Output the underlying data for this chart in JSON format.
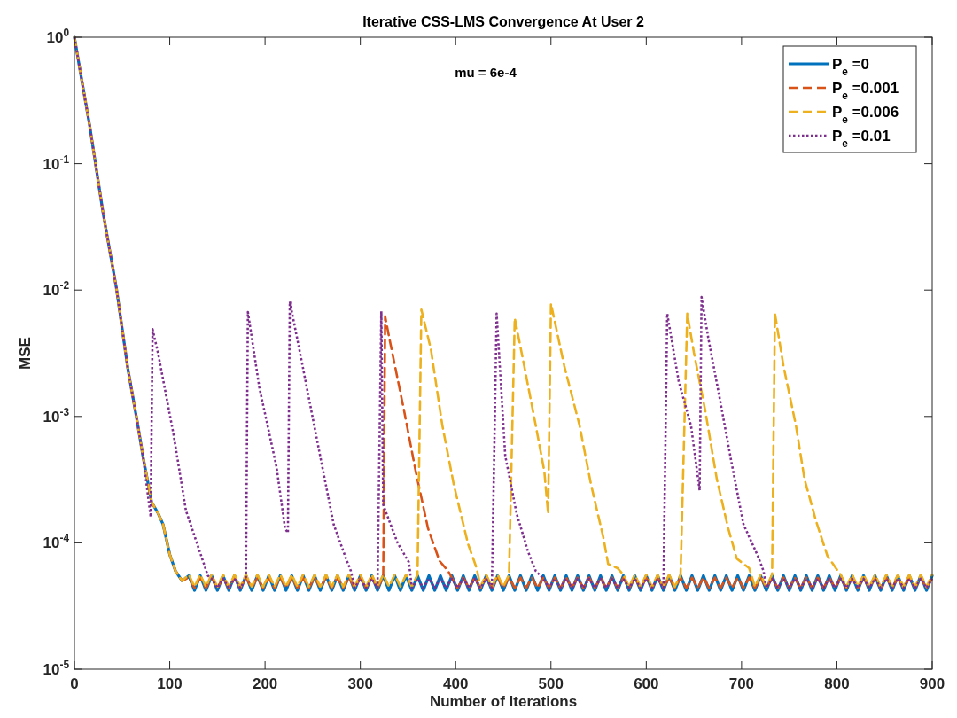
{
  "chart_data": {
    "type": "line",
    "title": "Iterative CSS-LMS Convergence At User 2",
    "xlabel": "Number of Iterations",
    "ylabel": "MSE",
    "annotations": [
      "mu = 6e-4"
    ],
    "log": "y",
    "grid": false,
    "legend": "top right",
    "marker": "none",
    "xlim": [
      0,
      900
    ],
    "xticks": [
      0,
      100,
      200,
      300,
      400,
      500,
      600,
      700,
      800,
      900
    ],
    "ylim": [
      1e-05,
      1
    ],
    "yticks": [
      {
        "value": 1e-05,
        "label": "10$^{-5}$"
      },
      {
        "value": 0.0001,
        "label": "10$^{-4}$"
      },
      {
        "value": 0.001,
        "label": "10$^{-3}$"
      },
      {
        "value": 0.01,
        "label": "10$^{-2}$"
      },
      {
        "value": 0.1,
        "label": "10$^{-1}$"
      },
      {
        "value": 1,
        "label": "10$^{0}$"
      }
    ],
    "series": [
      {
        "name": "P$_{e}$ =0",
        "color": "#0072bd",
        "line_style": "solid",
        "x": [
          0,
          5,
          16,
          30,
          44,
          56,
          66,
          72,
          81,
          88,
          93,
          100,
          106,
          113,
          120,
          126,
          132,
          138,
          144,
          150,
          156,
          162,
          168,
          174,
          180,
          186,
          192,
          198,
          204,
          210,
          216,
          222,
          228,
          234,
          240,
          246,
          252,
          258,
          264,
          270,
          276,
          282,
          288,
          294,
          300,
          306,
          312,
          318,
          324,
          330,
          336,
          342,
          348,
          354,
          360,
          366,
          372,
          378,
          384,
          390,
          396,
          402,
          408,
          414,
          420,
          426,
          432,
          438,
          444,
          450,
          456,
          462,
          468,
          474,
          480,
          486,
          492,
          498,
          504,
          510,
          516,
          522,
          528,
          534,
          540,
          546,
          552,
          558,
          564,
          570,
          576,
          582,
          588,
          594,
          600,
          606,
          612,
          618,
          624,
          630,
          636,
          642,
          648,
          654,
          660,
          666,
          672,
          678,
          684,
          690,
          696,
          702,
          708,
          714,
          720,
          726,
          732,
          738,
          744,
          750,
          756,
          762,
          768,
          774,
          780,
          786,
          792,
          798,
          804,
          810,
          816,
          822,
          828,
          834,
          840,
          846,
          852,
          858,
          864,
          870,
          876,
          882,
          888,
          894,
          900
        ],
        "values": [
          1,
          0.6,
          0.2,
          0.041,
          0.0104,
          0.0024,
          0.0009,
          0.00048,
          0.00021,
          0.00017,
          0.00014,
          8.1e-05,
          6e-05,
          5e-05,
          5.5e-05,
          4.2e-05,
          5.5e-05,
          4.2e-05,
          5.5e-05,
          4.2e-05,
          5.5e-05,
          4.2e-05,
          5.5e-05,
          4.2e-05,
          5.5e-05,
          4.2e-05,
          5.5e-05,
          4.2e-05,
          5.5e-05,
          4.2e-05,
          5.5e-05,
          4.2e-05,
          5.5e-05,
          4.2e-05,
          5.5e-05,
          4.2e-05,
          5.5e-05,
          4.2e-05,
          5.5e-05,
          4.2e-05,
          5.5e-05,
          4.2e-05,
          5.5e-05,
          4.2e-05,
          5.5e-05,
          4.2e-05,
          5.5e-05,
          4.2e-05,
          5.5e-05,
          4.2e-05,
          5.5e-05,
          4.2e-05,
          5.5e-05,
          4.2e-05,
          5.5e-05,
          4.2e-05,
          5.5e-05,
          4.2e-05,
          5.5e-05,
          4.2e-05,
          5.5e-05,
          4.2e-05,
          5.5e-05,
          4.2e-05,
          5.5e-05,
          4.2e-05,
          5.5e-05,
          4.2e-05,
          5.5e-05,
          4.2e-05,
          5.5e-05,
          4.2e-05,
          5.5e-05,
          4.2e-05,
          5.5e-05,
          4.2e-05,
          5.5e-05,
          4.2e-05,
          5.5e-05,
          4.2e-05,
          5.5e-05,
          4.2e-05,
          5.5e-05,
          4.2e-05,
          5.5e-05,
          4.2e-05,
          5.5e-05,
          4.2e-05,
          5.5e-05,
          4.2e-05,
          5.5e-05,
          4.2e-05,
          5.5e-05,
          4.2e-05,
          5.5e-05,
          4.2e-05,
          5.5e-05,
          4.2e-05,
          5.5e-05,
          4.2e-05,
          5.5e-05,
          4.2e-05,
          5.5e-05,
          4.2e-05,
          5.5e-05,
          4.2e-05,
          5.5e-05,
          4.2e-05,
          5.5e-05,
          4.2e-05,
          5.5e-05,
          4.2e-05,
          5.5e-05,
          4.2e-05,
          5.5e-05,
          4.2e-05,
          5.5e-05,
          4.2e-05,
          5.5e-05,
          4.2e-05,
          5.5e-05,
          4.2e-05,
          5.5e-05,
          4.2e-05,
          5.5e-05,
          4.2e-05,
          5.5e-05,
          4.2e-05,
          5.5e-05,
          4.2e-05,
          5.5e-05,
          4.2e-05,
          5.5e-05,
          4.2e-05,
          5.5e-05,
          4.2e-05,
          5.5e-05,
          4.2e-05,
          5.5e-05,
          4.2e-05,
          5.5e-05,
          4.2e-05,
          5.5e-05,
          4.2e-05,
          5.5e-05
        ]
      },
      {
        "name": "P$_{e}$ =0.001",
        "color": "#d95319",
        "line_style": "dashed",
        "x": [
          0,
          5,
          16,
          30,
          44,
          56,
          66,
          72,
          81,
          88,
          93,
          100,
          106,
          113,
          120,
          126,
          132,
          138,
          144,
          150,
          156,
          162,
          168,
          174,
          180,
          186,
          192,
          198,
          204,
          210,
          216,
          222,
          228,
          234,
          240,
          246,
          252,
          258,
          264,
          270,
          276,
          282,
          288,
          294,
          300,
          306,
          312,
          318,
          324,
          326,
          330,
          346,
          358,
          371,
          383,
          392,
          396,
          402,
          408,
          414,
          420,
          426,
          432,
          438,
          444,
          450,
          456,
          462,
          468,
          474,
          480,
          486,
          492,
          498,
          504,
          510,
          516,
          522,
          528,
          534,
          540,
          546,
          552,
          558,
          564,
          570,
          576,
          582,
          588,
          594,
          600,
          606,
          612,
          618,
          624,
          630,
          636,
          642,
          648,
          654,
          660,
          666,
          672,
          678,
          684,
          690,
          696,
          702,
          708,
          714,
          720,
          726,
          732,
          738,
          744,
          750,
          756,
          762,
          768,
          774,
          780,
          786,
          792,
          798,
          804,
          810,
          816,
          822,
          828,
          834,
          840,
          846,
          852,
          858,
          864,
          870,
          876,
          882,
          888,
          894,
          900
        ],
        "values": [
          1,
          0.6,
          0.2,
          0.041,
          0.0104,
          0.0024,
          0.0009,
          0.00048,
          0.00021,
          0.00017,
          0.00014,
          8.1e-05,
          6e-05,
          5e-05,
          5.3e-05,
          4.4e-05,
          5.3e-05,
          4.4e-05,
          5.3e-05,
          4.4e-05,
          5.3e-05,
          4.4e-05,
          5.3e-05,
          4.4e-05,
          5.3e-05,
          4.4e-05,
          5.3e-05,
          4.4e-05,
          5.3e-05,
          4.4e-05,
          5.3e-05,
          4.4e-05,
          5.3e-05,
          4.4e-05,
          5.3e-05,
          4.4e-05,
          5.3e-05,
          4.4e-05,
          5.3e-05,
          4.4e-05,
          5.3e-05,
          4.4e-05,
          5.3e-05,
          4.4e-05,
          5.3e-05,
          4.4e-05,
          5.3e-05,
          4.4e-05,
          5.3e-05,
          0.0062,
          0.0043,
          0.0011,
          0.00037,
          0.00013,
          7.2e-05,
          6e-05,
          5.3e-05,
          4.4e-05,
          5.3e-05,
          4.4e-05,
          5.3e-05,
          4.4e-05,
          5.3e-05,
          4.4e-05,
          5.3e-05,
          4.4e-05,
          5.3e-05,
          4.4e-05,
          5.3e-05,
          4.4e-05,
          5.3e-05,
          4.4e-05,
          5.3e-05,
          4.4e-05,
          5.3e-05,
          4.4e-05,
          5.3e-05,
          4.4e-05,
          5.3e-05,
          4.4e-05,
          5.3e-05,
          4.4e-05,
          5.3e-05,
          4.4e-05,
          5.3e-05,
          4.4e-05,
          5.3e-05,
          4.4e-05,
          5.3e-05,
          4.4e-05,
          5.3e-05,
          4.4e-05,
          5.3e-05,
          4.4e-05,
          5.3e-05,
          4.4e-05,
          5.3e-05,
          4.4e-05,
          5.3e-05,
          4.4e-05,
          5.3e-05,
          4.4e-05,
          5.3e-05,
          4.4e-05,
          5.3e-05,
          4.4e-05,
          5.3e-05,
          4.4e-05,
          5.3e-05,
          4.4e-05,
          5.3e-05,
          4.4e-05,
          5.3e-05,
          4.4e-05,
          5.3e-05,
          4.4e-05,
          5.3e-05,
          4.4e-05,
          5.3e-05,
          4.4e-05,
          5.3e-05,
          4.4e-05,
          5.3e-05,
          4.4e-05,
          5.3e-05,
          4.4e-05,
          5.3e-05,
          4.4e-05,
          5.3e-05,
          4.4e-05,
          5.3e-05,
          4.4e-05,
          5.3e-05,
          4.4e-05,
          5.3e-05,
          4.4e-05,
          5.3e-05,
          4.4e-05,
          5.3e-05,
          4.4e-05,
          5.3e-05
        ]
      },
      {
        "name": "P$_{e}$ =0.006",
        "color": "#edb120",
        "line_style": "dashed",
        "x": [
          0,
          5,
          16,
          30,
          44,
          56,
          66,
          72,
          81,
          88,
          93,
          100,
          106,
          113,
          120,
          126,
          132,
          138,
          144,
          150,
          156,
          162,
          168,
          174,
          180,
          186,
          192,
          198,
          204,
          210,
          216,
          222,
          228,
          234,
          240,
          246,
          252,
          258,
          264,
          270,
          276,
          282,
          288,
          294,
          300,
          306,
          312,
          318,
          324,
          330,
          336,
          342,
          348,
          354,
          360,
          364,
          374,
          386,
          398,
          413,
          422,
          426,
          432,
          438,
          444,
          450,
          456,
          462,
          472,
          484,
          493,
          497,
          500,
          514,
          530,
          542,
          555,
          560,
          570,
          576,
          582,
          588,
          594,
          600,
          606,
          612,
          618,
          624,
          630,
          636,
          643,
          650,
          662,
          674,
          686,
          695,
          708,
          714,
          720,
          726,
          732,
          735,
          744,
          757,
          766,
          778,
          790,
          799,
          804,
          810,
          816,
          822,
          828,
          834,
          840,
          846,
          852,
          858,
          864,
          870,
          876,
          882,
          888,
          894,
          900
        ],
        "values": [
          1,
          0.6,
          0.2,
          0.041,
          0.0104,
          0.0024,
          0.0009,
          0.00048,
          0.00021,
          0.00017,
          0.00014,
          8.1e-05,
          6e-05,
          5e-05,
          5.6e-05,
          4.5e-05,
          5.6e-05,
          4.5e-05,
          5.6e-05,
          4.5e-05,
          5.6e-05,
          4.5e-05,
          5.6e-05,
          4.5e-05,
          5.6e-05,
          4.5e-05,
          5.6e-05,
          4.5e-05,
          5.6e-05,
          4.5e-05,
          5.6e-05,
          4.5e-05,
          5.6e-05,
          4.5e-05,
          5.6e-05,
          4.5e-05,
          5.6e-05,
          4.5e-05,
          5.6e-05,
          4.5e-05,
          5.6e-05,
          4.5e-05,
          5.6e-05,
          4.5e-05,
          5.6e-05,
          4.5e-05,
          5.6e-05,
          4.5e-05,
          5.6e-05,
          4.5e-05,
          5.6e-05,
          4.5e-05,
          5.6e-05,
          4.5e-05,
          5.6e-05,
          0.007,
          0.0034,
          0.00085,
          0.00029,
          9.8e-05,
          6.3e-05,
          4.5e-05,
          5.6e-05,
          4.5e-05,
          5.6e-05,
          4.5e-05,
          5.6e-05,
          0.006,
          0.0025,
          0.00085,
          0.00037,
          0.00017,
          0.0078,
          0.0025,
          0.00085,
          0.00029,
          0.00011,
          6.8e-05,
          6.3e-05,
          5.6e-05,
          4.5e-05,
          5.6e-05,
          4.5e-05,
          5.6e-05,
          4.5e-05,
          5.6e-05,
          4.5e-05,
          5.6e-05,
          4.5e-05,
          5.6e-05,
          0.0065,
          0.0032,
          0.0011,
          0.00032,
          0.00013,
          7.5e-05,
          6.3e-05,
          4.5e-05,
          5.6e-05,
          4.5e-05,
          5.6e-05,
          0.0065,
          0.0025,
          0.00085,
          0.00032,
          0.00015,
          7.9e-05,
          6.3e-05,
          5.6e-05,
          4.5e-05,
          5.6e-05,
          4.5e-05,
          5.6e-05,
          4.5e-05,
          5.6e-05,
          4.5e-05,
          5.6e-05,
          4.5e-05,
          5.6e-05,
          4.5e-05,
          5.6e-05,
          4.5e-05,
          5.6e-05,
          4.5e-05,
          5.6e-05
        ]
      },
      {
        "name": "P$_{e}$ =0.01",
        "color": "#7e2f8e",
        "line_style": "dotted",
        "x": [
          0,
          5,
          16,
          30,
          44,
          56,
          66,
          72,
          80,
          82,
          88,
          104,
          117,
          134,
          140,
          144,
          150,
          156,
          162,
          168,
          174,
          180,
          182,
          194,
          212,
          221,
          224,
          226,
          239,
          258,
          272,
          285,
          290,
          294,
          300,
          306,
          312,
          318,
          322,
          324,
          339,
          351,
          354,
          360,
          366,
          372,
          378,
          384,
          390,
          396,
          402,
          408,
          414,
          420,
          426,
          432,
          438,
          443,
          452,
          464,
          476,
          484,
          492,
          498,
          504,
          510,
          516,
          522,
          528,
          534,
          540,
          546,
          552,
          558,
          564,
          570,
          576,
          582,
          588,
          594,
          600,
          606,
          612,
          618,
          622,
          634,
          647,
          656,
          658,
          665,
          677,
          689,
          702,
          717,
          723,
          726,
          732,
          738,
          744,
          750,
          756,
          762,
          768,
          774,
          780,
          786,
          792,
          798,
          804,
          810,
          816,
          822,
          828,
          834,
          840,
          846,
          852,
          858,
          864,
          870,
          876,
          882,
          888,
          894,
          900
        ],
        "values": [
          1,
          0.6,
          0.2,
          0.041,
          0.0104,
          0.0024,
          0.0009,
          0.00048,
          0.00016,
          0.0049,
          0.0031,
          0.00072,
          0.00018,
          7.5e-05,
          5.5e-05,
          5.2e-05,
          4.4e-05,
          5.2e-05,
          4.4e-05,
          5.2e-05,
          4.4e-05,
          5.2e-05,
          0.0067,
          0.0017,
          0.0004,
          0.00013,
          0.00012,
          0.0081,
          0.0026,
          0.00048,
          0.00014,
          7.5e-05,
          6e-05,
          4.4e-05,
          5.2e-05,
          4.4e-05,
          5.2e-05,
          4.4e-05,
          0.0068,
          0.0002,
          0.0001,
          7e-05,
          4.4e-05,
          5.2e-05,
          4.4e-05,
          5.2e-05,
          4.4e-05,
          5.2e-05,
          4.4e-05,
          5.2e-05,
          4.4e-05,
          5.2e-05,
          4.4e-05,
          5.2e-05,
          4.4e-05,
          5.2e-05,
          4.4e-05,
          0.0065,
          0.00049,
          0.00017,
          8.5e-05,
          6e-05,
          5.2e-05,
          4.4e-05,
          5.2e-05,
          4.4e-05,
          5.2e-05,
          4.4e-05,
          5.2e-05,
          4.4e-05,
          5.2e-05,
          4.4e-05,
          5.2e-05,
          4.4e-05,
          5.2e-05,
          4.4e-05,
          5.2e-05,
          4.4e-05,
          5.2e-05,
          4.4e-05,
          5.2e-05,
          4.4e-05,
          5.2e-05,
          4.4e-05,
          0.0065,
          0.0019,
          0.00084,
          0.00026,
          0.0088,
          0.0042,
          0.0014,
          0.00045,
          0.00014,
          7.9e-05,
          6e-05,
          4.4e-05,
          5.2e-05,
          4.4e-05,
          5.2e-05,
          4.4e-05,
          5.2e-05,
          4.4e-05,
          5.2e-05,
          4.4e-05,
          5.2e-05,
          4.4e-05,
          5.2e-05,
          4.4e-05,
          5.2e-05,
          4.4e-05,
          5.2e-05,
          4.4e-05,
          5.2e-05,
          4.4e-05,
          5.2e-05,
          4.4e-05,
          5.2e-05,
          4.4e-05,
          5.2e-05,
          4.4e-05,
          5.2e-05,
          4.4e-05,
          5.2e-05,
          4.4e-05,
          5.2e-05
        ]
      }
    ]
  }
}
